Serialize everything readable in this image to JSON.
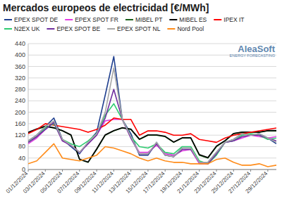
{
  "chart_data": {
    "type": "line",
    "title": "Mercados europeos de electricidad [€/MWh]",
    "annotations": [
      "AleaSoft",
      "ENERGY FORECASTING"
    ],
    "categories": [
      "01/12/2024",
      null,
      "03/12/2024",
      null,
      "05/12/2024",
      null,
      "07/12/2024",
      null,
      "09/12/2024",
      null,
      "11/12/2024",
      null,
      "13/12/2024",
      null,
      "15/12/2024",
      null,
      "17/12/2024",
      null,
      "19/12/2024",
      null,
      "21/12/2024",
      null,
      "23/12/2024",
      null,
      "25/12/2024",
      null,
      "27/12/2024",
      null,
      "29/12/2024",
      null
    ],
    "series": [
      {
        "name": "EPEX SPOT DE",
        "color": "#1f3f8f",
        "values": [
          100,
          120,
          150,
          180,
          105,
          80,
          55,
          95,
          130,
          260,
          395,
          175,
          125,
          50,
          50,
          95,
          50,
          45,
          75,
          75,
          25,
          25,
          60,
          95,
          105,
          125,
          120,
          125,
          110,
          90
        ]
      },
      {
        "name": "EPEX SPOT FR",
        "color": "#e23be2",
        "values": [
          90,
          110,
          140,
          165,
          100,
          85,
          60,
          90,
          120,
          170,
          175,
          175,
          110,
          60,
          60,
          85,
          55,
          50,
          65,
          70,
          20,
          20,
          55,
          95,
          100,
          110,
          120,
          115,
          110,
          115
        ]
      },
      {
        "name": "MIBEL PT",
        "color": "#1a5e1a",
        "values": [
          128,
          140,
          150,
          145,
          135,
          120,
          35,
          25,
          70,
          120,
          135,
          145,
          140,
          105,
          120,
          120,
          115,
          95,
          110,
          110,
          50,
          40,
          80,
          100,
          125,
          130,
          130,
          130,
          135,
          135
        ]
      },
      {
        "name": "MIBEL ES",
        "color": "#000000",
        "values": [
          130,
          142,
          152,
          146,
          136,
          121,
          36,
          26,
          72,
          121,
          136,
          146,
          141,
          106,
          121,
          121,
          116,
          96,
          111,
          111,
          52,
          42,
          82,
          101,
          126,
          131,
          131,
          131,
          136,
          136
        ]
      },
      {
        "name": "IPEX IT",
        "color": "#ff0000",
        "values": [
          125,
          140,
          160,
          155,
          150,
          145,
          140,
          130,
          140,
          155,
          180,
          175,
          175,
          120,
          135,
          135,
          130,
          120,
          120,
          125,
          105,
          100,
          95,
          110,
          120,
          125,
          130,
          135,
          140,
          145
        ]
      },
      {
        "name": "N2EX UK",
        "color": "#2ecc71",
        "values": [
          95,
          115,
          145,
          160,
          105,
          90,
          80,
          100,
          125,
          190,
          230,
          175,
          115,
          80,
          75,
          90,
          60,
          55,
          80,
          80,
          30,
          20,
          50,
          95,
          100,
          120,
          125,
          120,
          105,
          110
        ]
      },
      {
        "name": "EPEX SPOT BE",
        "color": "#7030a0",
        "values": [
          95,
          115,
          140,
          165,
          100,
          85,
          60,
          90,
          120,
          180,
          280,
          175,
          110,
          55,
          55,
          90,
          50,
          45,
          70,
          70,
          25,
          20,
          55,
          95,
          100,
          115,
          120,
          120,
          110,
          100
        ]
      },
      {
        "name": "EPEX SPOT NL",
        "color": "#a6a6a6",
        "values": [
          100,
          120,
          150,
          170,
          105,
          85,
          60,
          95,
          125,
          200,
          355,
          175,
          115,
          55,
          55,
          95,
          50,
          45,
          75,
          75,
          25,
          25,
          60,
          95,
          105,
          125,
          120,
          125,
          110,
          95
        ]
      },
      {
        "name": "Nord Pool",
        "color": "#ff8c1a",
        "values": [
          20,
          30,
          60,
          90,
          40,
          35,
          30,
          40,
          50,
          80,
          75,
          65,
          55,
          40,
          30,
          40,
          30,
          25,
          25,
          20,
          20,
          20,
          35,
          40,
          25,
          15,
          15,
          20,
          10,
          15
        ]
      }
    ],
    "ylim": [
      0,
      440
    ],
    "yticks": [
      0,
      40,
      80,
      120,
      160,
      200,
      240,
      280,
      320,
      360,
      400,
      440
    ],
    "grid": true,
    "legend": "top"
  }
}
